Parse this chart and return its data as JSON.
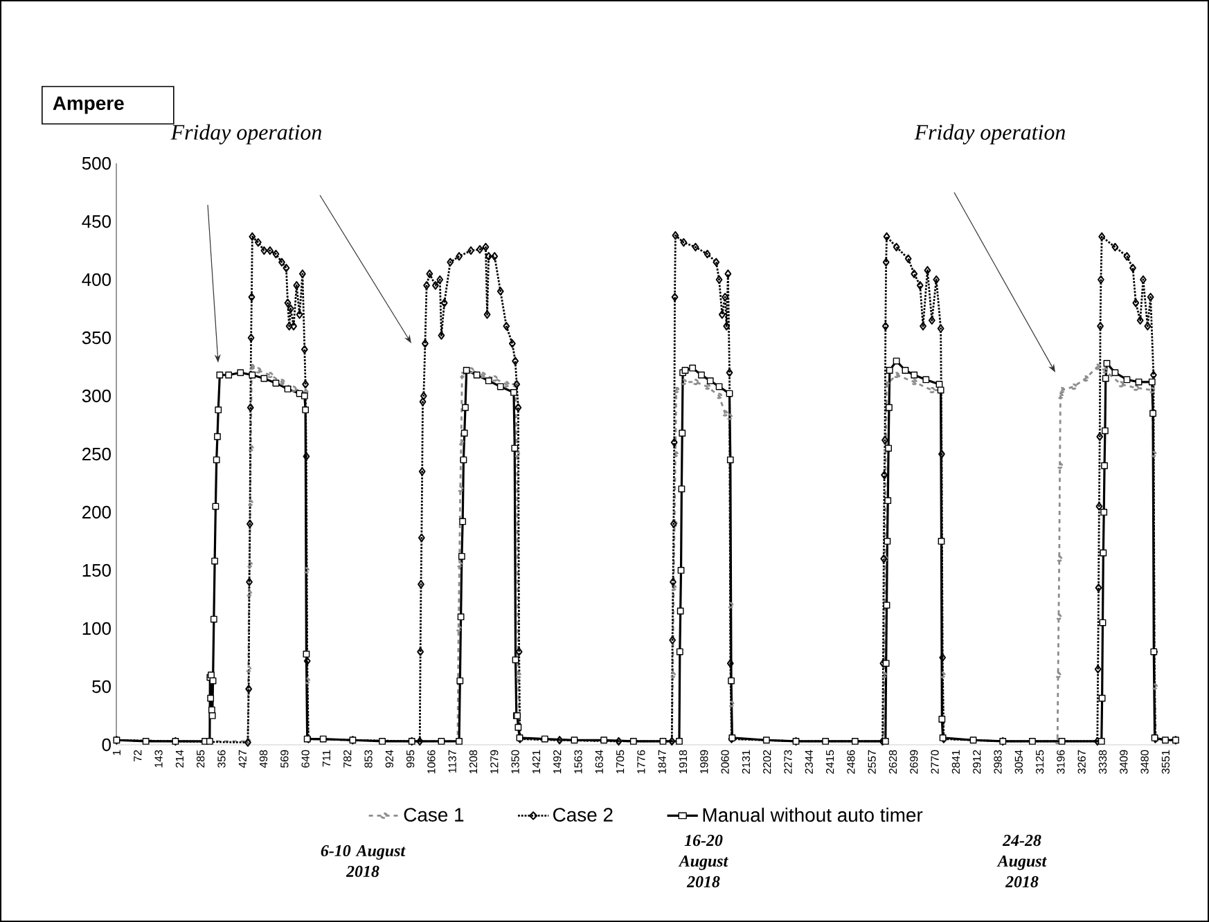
{
  "chart_data": {
    "type": "line",
    "annotations": [
      "Ampere",
      "Friday operation",
      "Friday operation",
      "6-10 August 2018",
      "16-20 August 2018",
      "24-28 August 2018"
    ],
    "xlim": [
      0,
      3590
    ],
    "ylim": [
      0,
      500
    ],
    "xticks": [
      1,
      72,
      143,
      214,
      285,
      356,
      427,
      498,
      569,
      640,
      711,
      782,
      853,
      924,
      995,
      1066,
      1137,
      1208,
      1279,
      1350,
      1421,
      1492,
      1563,
      1634,
      1705,
      1776,
      1847,
      1918,
      1989,
      2060,
      2131,
      2202,
      2273,
      2344,
      2415,
      2486,
      2557,
      2628,
      2699,
      2770,
      2841,
      2912,
      2983,
      3054,
      3125,
      3196,
      3267,
      3338,
      3409,
      3480,
      3551
    ],
    "yticks": [
      0,
      50,
      100,
      150,
      200,
      250,
      300,
      350,
      400,
      450,
      500
    ],
    "legend": "bottom",
    "series": [
      {
        "name": "Case 1",
        "color": "#8c8c8c",
        "marker": "circle",
        "line_style": "dashed",
        "x": [
          1,
          200,
          445,
          447,
          449,
          451,
          453,
          455,
          458,
          480,
          520,
          560,
          600,
          640,
          643,
          646,
          650,
          800,
          1000,
          1155,
          1158,
          1161,
          1164,
          1167,
          1170,
          1200,
          1240,
          1280,
          1320,
          1350,
          1356,
          1360,
          1365,
          1500,
          1700,
          1880,
          1883,
          1886,
          1889,
          1892,
          1895,
          1920,
          1960,
          2000,
          2040,
          2060,
          2075,
          2078,
          2081,
          2085,
          2300,
          2595,
          2598,
          2601,
          2604,
          2607,
          2640,
          2700,
          2760,
          2790,
          2793,
          2796,
          2800,
          3000,
          3185,
          3187,
          3189,
          3191,
          3193,
          3195,
          3200,
          3240,
          3280,
          3320,
          3345,
          3400,
          3450,
          3505,
          3510,
          3514,
          3518,
          3585
        ],
        "values": [
          4,
          3,
          3,
          65,
          130,
          155,
          208,
          255,
          325,
          322,
          318,
          312,
          306,
          303,
          150,
          55,
          5,
          4,
          3,
          3,
          100,
          155,
          220,
          260,
          318,
          322,
          318,
          315,
          310,
          310,
          250,
          60,
          5,
          4,
          3,
          3,
          60,
          135,
          190,
          250,
          305,
          312,
          312,
          308,
          300,
          285,
          282,
          120,
          35,
          5,
          3,
          3,
          60,
          160,
          255,
          310,
          318,
          312,
          305,
          305,
          250,
          60,
          5,
          3,
          3,
          60,
          110,
          160,
          240,
          300,
          305,
          308,
          315,
          325,
          322,
          310,
          307,
          305,
          250,
          50,
          5,
          4
        ]
      },
      {
        "name": "Case 2",
        "color": "#000000",
        "marker": "diamond",
        "line_style": "dotted",
        "x": [
          1,
          200,
          445,
          448,
          450,
          452,
          454,
          456,
          458,
          460,
          480,
          500,
          520,
          540,
          560,
          575,
          580,
          585,
          590,
          600,
          610,
          620,
          630,
          637,
          640,
          643,
          646,
          650,
          800,
          1000,
          1027,
          1029,
          1031,
          1033,
          1035,
          1037,
          1040,
          1045,
          1050,
          1060,
          1080,
          1095,
          1100,
          1110,
          1130,
          1160,
          1200,
          1230,
          1250,
          1255,
          1260,
          1280,
          1300,
          1320,
          1340,
          1350,
          1355,
          1360,
          1363,
          1366,
          1500,
          1700,
          1880,
          1882,
          1884,
          1886,
          1888,
          1890,
          1892,
          1920,
          1960,
          2000,
          2030,
          2040,
          2050,
          2060,
          2065,
          2070,
          2075,
          2078,
          2082,
          2300,
          2593,
          2595,
          2597,
          2599,
          2601,
          2603,
          2605,
          2607,
          2640,
          2680,
          2700,
          2720,
          2730,
          2745,
          2760,
          2775,
          2790,
          2793,
          2796,
          2800,
          3000,
          3320,
          3322,
          3324,
          3326,
          3328,
          3330,
          3332,
          3335,
          3380,
          3420,
          3440,
          3450,
          3465,
          3475,
          3490,
          3500,
          3510,
          3513,
          3516,
          3585
        ],
        "values": [
          4,
          3,
          2,
          48,
          140,
          190,
          290,
          350,
          385,
          437,
          432,
          425,
          425,
          422,
          415,
          410,
          380,
          360,
          375,
          360,
          395,
          370,
          405,
          340,
          310,
          248,
          72,
          5,
          4,
          3,
          3,
          80,
          138,
          178,
          235,
          295,
          300,
          345,
          395,
          405,
          395,
          400,
          352,
          380,
          415,
          420,
          425,
          426,
          428,
          370,
          420,
          420,
          390,
          360,
          345,
          330,
          310,
          290,
          80,
          5,
          4,
          3,
          3,
          90,
          140,
          190,
          260,
          385,
          438,
          432,
          428,
          422,
          415,
          400,
          370,
          385,
          360,
          405,
          320,
          70,
          5,
          3,
          3,
          70,
          160,
          232,
          262,
          360,
          415,
          437,
          428,
          418,
          405,
          395,
          360,
          408,
          365,
          400,
          358,
          250,
          75,
          5,
          3,
          3,
          65,
          135,
          205,
          265,
          360,
          400,
          437,
          428,
          420,
          410,
          380,
          365,
          400,
          360,
          385,
          318,
          80,
          5,
          4
        ]
      },
      {
        "name": "Manual without auto timer",
        "color": "#000000",
        "marker": "square",
        "line_style": "solid",
        "x": [
          1,
          100,
          200,
          300,
          316,
          317,
          319,
          321,
          323,
          325,
          327,
          330,
          333,
          336,
          339,
          342,
          345,
          350,
          380,
          420,
          460,
          500,
          540,
          580,
          620,
          637,
          640,
          643,
          646,
          700,
          800,
          900,
          1000,
          1100,
          1160,
          1163,
          1166,
          1169,
          1172,
          1175,
          1178,
          1181,
          1185,
          1220,
          1260,
          1300,
          1345,
          1348,
          1351,
          1354,
          1357,
          1360,
          1365,
          1450,
          1550,
          1650,
          1750,
          1850,
          1905,
          1907,
          1909,
          1911,
          1913,
          1915,
          1917,
          1925,
          1950,
          1980,
          2010,
          2040,
          2075,
          2078,
          2081,
          2084,
          2200,
          2300,
          2400,
          2500,
          2603,
          2605,
          2607,
          2609,
          2611,
          2613,
          2615,
          2617,
          2640,
          2670,
          2700,
          2740,
          2785,
          2790,
          2792,
          2794,
          2797,
          2900,
          3000,
          3100,
          3200,
          3334,
          3336,
          3338,
          3340,
          3342,
          3344,
          3346,
          3348,
          3352,
          3380,
          3420,
          3460,
          3505,
          3508,
          3511,
          3514,
          3550,
          3585
        ],
        "values": [
          4,
          3,
          3,
          3,
          3,
          58,
          40,
          60,
          30,
          25,
          55,
          108,
          158,
          205,
          245,
          265,
          288,
          318,
          318,
          320,
          318,
          315,
          311,
          306,
          302,
          300,
          288,
          78,
          5,
          5,
          4,
          3,
          3,
          3,
          3,
          55,
          110,
          162,
          192,
          245,
          268,
          290,
          322,
          318,
          313,
          308,
          303,
          255,
          73,
          25,
          25,
          15,
          6,
          5,
          4,
          4,
          3,
          3,
          3,
          80,
          115,
          150,
          220,
          268,
          320,
          322,
          324,
          318,
          313,
          308,
          302,
          245,
          55,
          6,
          4,
          3,
          3,
          3,
          3,
          70,
          120,
          175,
          210,
          255,
          290,
          322,
          330,
          322,
          318,
          314,
          310,
          305,
          175,
          22,
          6,
          4,
          3,
          3,
          3,
          3,
          40,
          105,
          165,
          200,
          240,
          270,
          315,
          328,
          320,
          314,
          312,
          312,
          285,
          80,
          6,
          4,
          4
        ]
      }
    ]
  }
}
